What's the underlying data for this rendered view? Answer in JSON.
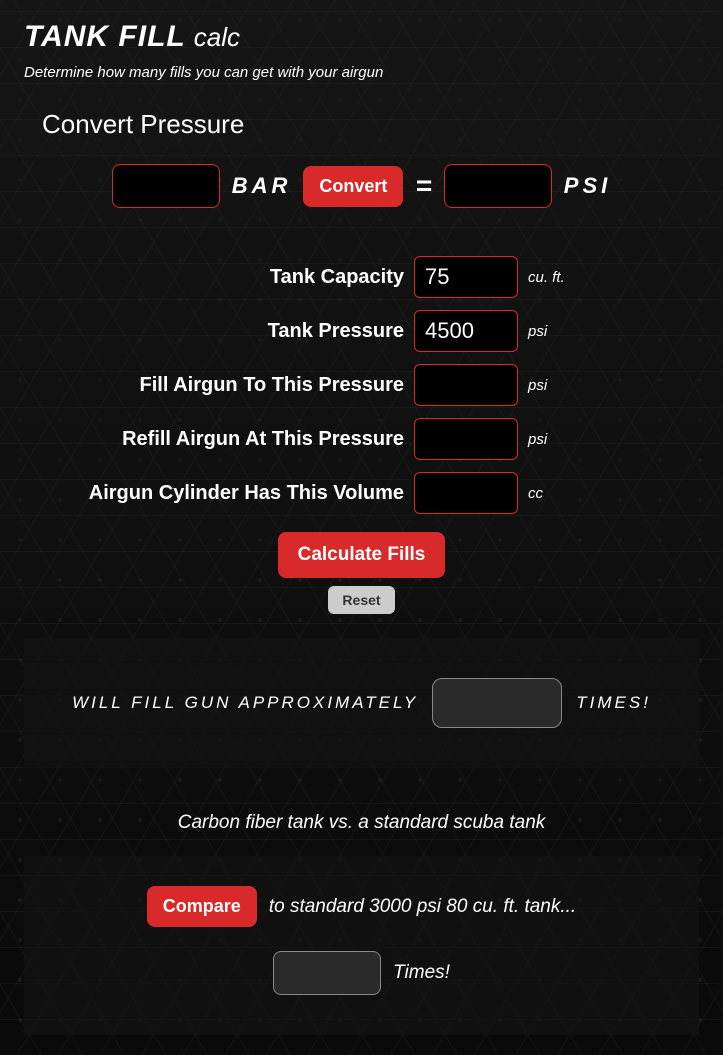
{
  "header": {
    "title_strong": "TANK FILL",
    "title_light": "calc",
    "subtitle": "Determine how many fills you can get with your airgun"
  },
  "convert": {
    "heading": "Convert Pressure",
    "bar_value": "",
    "bar_label": "BAR",
    "button_label": "Convert",
    "equals": "=",
    "psi_value": "",
    "psi_label": "PSI"
  },
  "form": {
    "rows": [
      {
        "label": "Tank Capacity",
        "value": "75",
        "unit": "cu. ft."
      },
      {
        "label": "Tank Pressure",
        "value": "4500",
        "unit": "psi"
      },
      {
        "label": "Fill Airgun To This Pressure",
        "value": "",
        "unit": "psi"
      },
      {
        "label": "Refill Airgun At This Pressure",
        "value": "",
        "unit": "psi"
      },
      {
        "label": "Airgun Cylinder Has This Volume",
        "value": "",
        "unit": "cc"
      }
    ],
    "calculate_label": "Calculate Fills",
    "reset_label": "Reset"
  },
  "result": {
    "prefix": "WILL FILL GUN APPROXIMATELY",
    "value": "",
    "suffix": "TIMES!"
  },
  "compare": {
    "heading": "Carbon fiber tank vs. a standard scuba tank",
    "button_label": "Compare",
    "text": "to standard 3000 psi 80 cu. ft. tank...",
    "value": "",
    "times_label": "Times!"
  },
  "colors": {
    "accent": "#d82a2a",
    "background": "#000000",
    "panel": "#141414",
    "result_box_bg": "#2a2a2a",
    "result_box_border": "#888888",
    "reset_bg": "#cccccc",
    "text": "#ffffff"
  }
}
